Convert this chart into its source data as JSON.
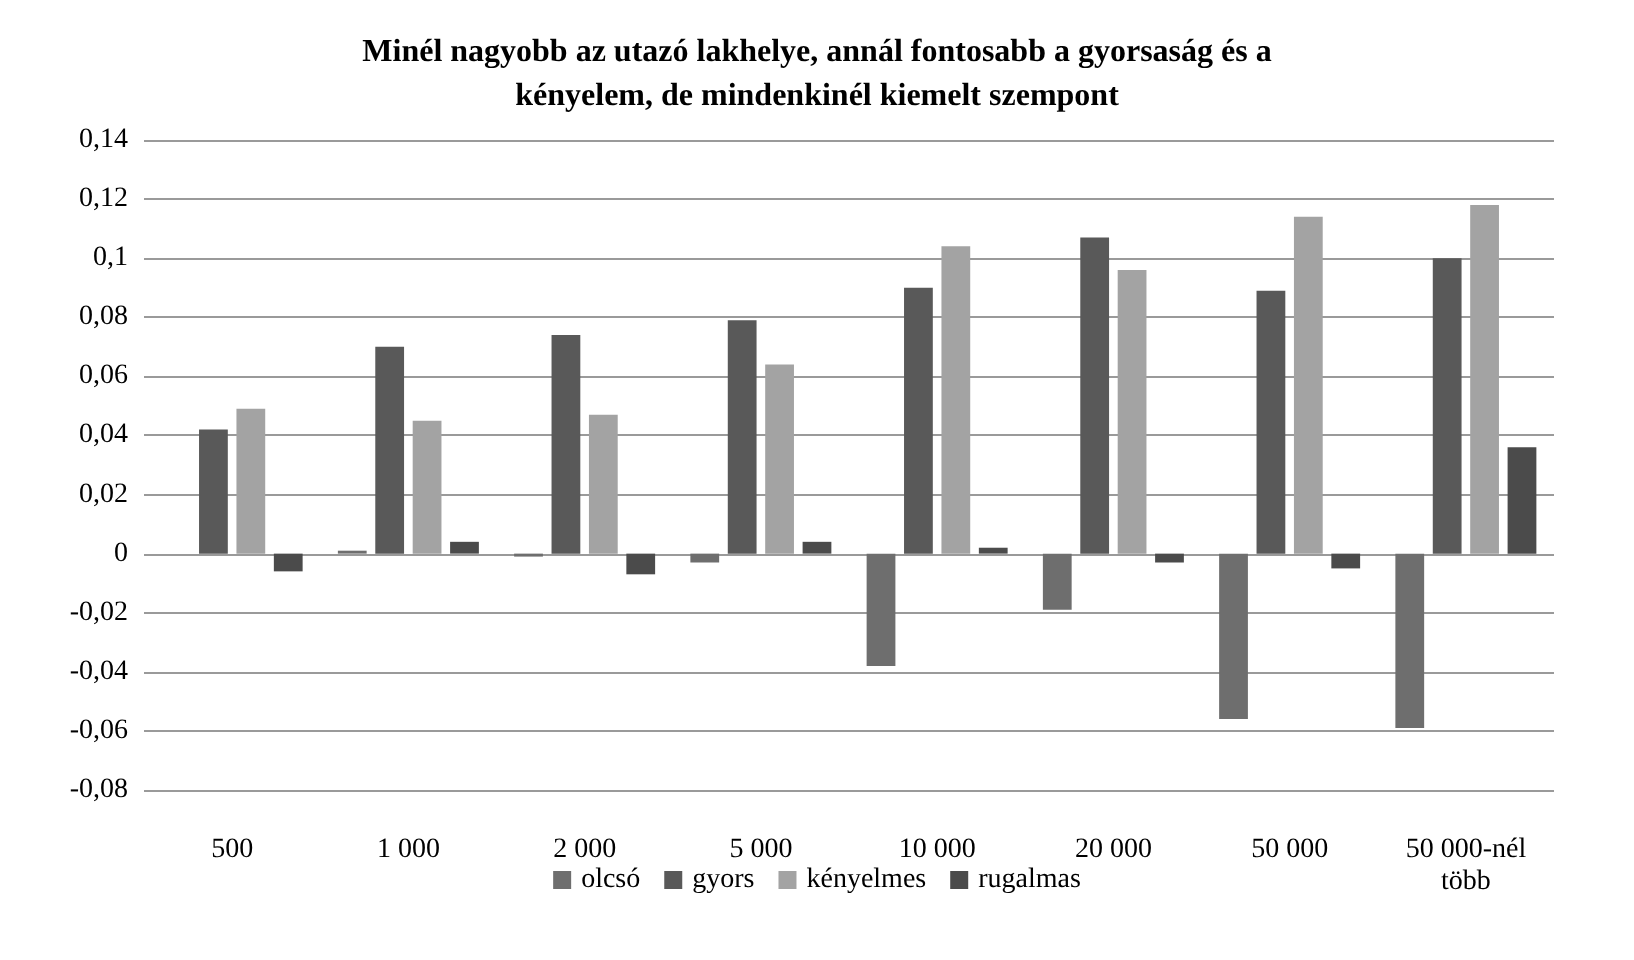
{
  "chart_data": {
    "type": "bar",
    "title": "Minél nagyobb az utazó lakhelye, annál fontosabb a gyorsaság és a\nkényelem, de mindenkinél kiemelt szempont",
    "categories": [
      "500",
      "1 000",
      "2 000",
      "5 000",
      "10 000",
      "20 000",
      "50 000",
      "50 000-nél\ntöbb"
    ],
    "series": [
      {
        "name": "olcsó",
        "color": "#6e6e6e",
        "values": [
          0,
          0.001,
          -0.001,
          -0.003,
          -0.038,
          -0.019,
          -0.056,
          -0.059
        ]
      },
      {
        "name": "gyors",
        "color": "#595959",
        "values": [
          0.042,
          0.07,
          0.074,
          0.079,
          0.09,
          0.107,
          0.089,
          0.1
        ]
      },
      {
        "name": "kényelmes",
        "color": "#a3a3a3",
        "values": [
          0.049,
          0.045,
          0.047,
          0.064,
          0.104,
          0.096,
          0.114,
          0.118
        ]
      },
      {
        "name": "rugalmas",
        "color": "#4b4b4b",
        "values": [
          -0.006,
          0.004,
          -0.007,
          0.004,
          0.002,
          -0.003,
          -0.005,
          0.036
        ]
      }
    ],
    "ylim": [
      -0.08,
      0.14
    ],
    "yticks": [
      {
        "value": -0.08,
        "label": "-0,08"
      },
      {
        "value": -0.06,
        "label": "-0,06"
      },
      {
        "value": -0.04,
        "label": "-0,04"
      },
      {
        "value": -0.02,
        "label": "-0,02"
      },
      {
        "value": 0,
        "label": "0"
      },
      {
        "value": 0.02,
        "label": "0,02"
      },
      {
        "value": 0.04,
        "label": "0,04"
      },
      {
        "value": 0.06,
        "label": "0,06"
      },
      {
        "value": 0.08,
        "label": "0,08"
      },
      {
        "value": 0.1,
        "label": "0,1"
      },
      {
        "value": 0.12,
        "label": "0,12"
      },
      {
        "value": 0.14,
        "label": "0,14"
      }
    ],
    "grid": "y",
    "legend": "bottom"
  }
}
